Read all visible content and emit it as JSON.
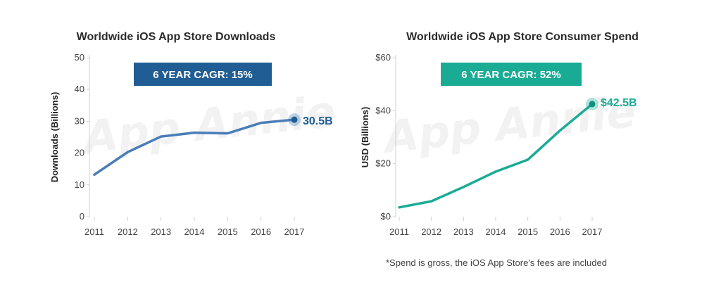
{
  "watermark": "App Annie",
  "footnote": "*Spend is gross, the iOS App Store's fees are included",
  "chart_data": [
    {
      "type": "line",
      "title": "Worldwide iOS App Store Downloads",
      "ylabel": "Downloads (Billions)",
      "xlabel": "",
      "categories": [
        "2011",
        "2012",
        "2013",
        "2014",
        "2015",
        "2016",
        "2017"
      ],
      "values": [
        13.2,
        20.3,
        25.2,
        26.4,
        26.2,
        29.5,
        30.5
      ],
      "ylim": [
        0,
        50
      ],
      "yticks": [
        0,
        10,
        20,
        30,
        40,
        50
      ],
      "ytick_labels": [
        "0",
        "10",
        "20",
        "30",
        "40",
        "50"
      ],
      "callout": "6 YEAR CAGR: 15%",
      "end_label": "30.5B",
      "color": "#4a7db8",
      "callout_color": "#1f5d94",
      "grid": false
    },
    {
      "type": "line",
      "title": "Worldwide iOS App Store Consumer Spend",
      "ylabel": "USD (Billions)",
      "xlabel": "",
      "categories": [
        "2011",
        "2012",
        "2013",
        "2014",
        "2015",
        "2016",
        "2017"
      ],
      "values": [
        3.5,
        5.8,
        11.2,
        17,
        21.5,
        32.5,
        42.5
      ],
      "ylim": [
        0,
        60
      ],
      "yticks": [
        0,
        20,
        40,
        60
      ],
      "ytick_labels": [
        "$0",
        "$20",
        "$40",
        "$60"
      ],
      "callout": "6 YEAR CAGR: 52%",
      "end_label": "$42.5B",
      "color": "#1aab95",
      "callout_color": "#1aab95",
      "grid": false
    }
  ]
}
